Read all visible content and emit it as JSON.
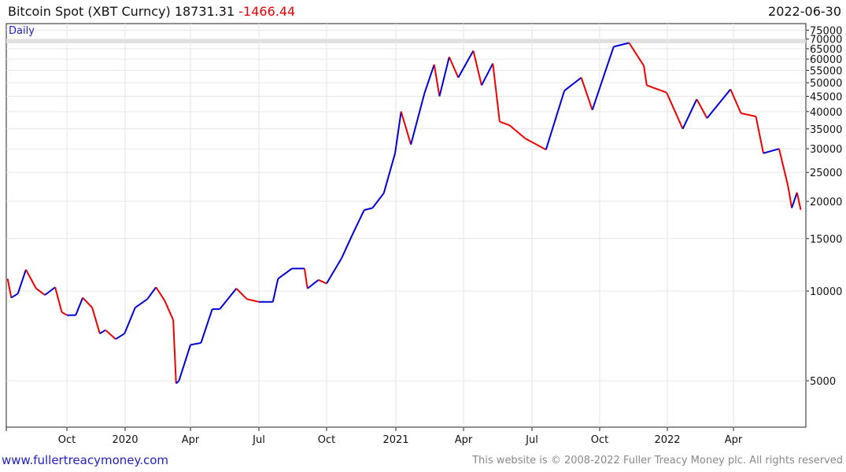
{
  "header": {
    "title": "Bitcoin Spot (XBT Curncy)",
    "last": "18731.31",
    "change": "-1466.44",
    "date": "2022-06-30"
  },
  "period": "Daily",
  "footer": {
    "link": "www.fullertreacymoney.com",
    "copyright": "This website is © 2008-2022 Fuller Treacy Money plc. All rights reserved"
  },
  "colors": {
    "up": "#0000dd",
    "down": "#ee0000"
  },
  "chart_data": {
    "type": "line",
    "scale": "log",
    "title": "Bitcoin Spot (XBT Curncy)",
    "ylim": [
      3800,
      78000
    ],
    "y_ticks": [
      5000,
      10000,
      15000,
      20000,
      25000,
      30000,
      35000,
      40000,
      45000,
      50000,
      55000,
      60000,
      65000,
      70000,
      75000
    ],
    "x_ticks": [
      {
        "label": "Oct",
        "date": "2019-10-01"
      },
      {
        "label": "2020",
        "date": "2020-01-01"
      },
      {
        "label": "Apr",
        "date": "2020-04-01"
      },
      {
        "label": "Jul",
        "date": "2020-07-01"
      },
      {
        "label": "Oct",
        "date": "2020-10-01"
      },
      {
        "label": "2021",
        "date": "2021-01-01"
      },
      {
        "label": "Apr",
        "date": "2021-04-01"
      },
      {
        "label": "Jul",
        "date": "2021-07-01"
      },
      {
        "label": "Oct",
        "date": "2021-10-01"
      },
      {
        "label": "2022",
        "date": "2022-01-01"
      },
      {
        "label": "Apr",
        "date": "2022-04-01"
      }
    ],
    "series": [
      [
        "2019-07-12",
        11000
      ],
      [
        "2019-07-17",
        9500
      ],
      [
        "2019-07-26",
        9800
      ],
      [
        "2019-08-06",
        11800
      ],
      [
        "2019-08-20",
        10200
      ],
      [
        "2019-09-01",
        9700
      ],
      [
        "2019-09-15",
        10300
      ],
      [
        "2019-09-24",
        8500
      ],
      [
        "2019-10-01",
        8300
      ],
      [
        "2019-10-15",
        8300
      ],
      [
        "2019-10-26",
        9500
      ],
      [
        "2019-11-10",
        8800
      ],
      [
        "2019-11-22",
        7200
      ],
      [
        "2019-12-01",
        7400
      ],
      [
        "2019-12-17",
        6900
      ],
      [
        "2019-12-31",
        7200
      ],
      [
        "2020-01-15",
        8800
      ],
      [
        "2020-02-01",
        9400
      ],
      [
        "2020-02-13",
        10300
      ],
      [
        "2020-02-25",
        9300
      ],
      [
        "2020-03-08",
        8000
      ],
      [
        "2020-03-12",
        4900
      ],
      [
        "2020-03-16",
        5000
      ],
      [
        "2020-04-01",
        6600
      ],
      [
        "2020-04-15",
        6700
      ],
      [
        "2020-04-30",
        8700
      ],
      [
        "2020-05-10",
        8700
      ],
      [
        "2020-06-01",
        10200
      ],
      [
        "2020-06-15",
        9400
      ],
      [
        "2020-07-01",
        9200
      ],
      [
        "2020-07-20",
        9200
      ],
      [
        "2020-07-27",
        11000
      ],
      [
        "2020-08-15",
        11900
      ],
      [
        "2020-09-01",
        11900
      ],
      [
        "2020-09-05",
        10200
      ],
      [
        "2020-09-20",
        10900
      ],
      [
        "2020-10-01",
        10600
      ],
      [
        "2020-10-21",
        12900
      ],
      [
        "2020-11-05",
        15600
      ],
      [
        "2020-11-20",
        18700
      ],
      [
        "2020-12-01",
        19000
      ],
      [
        "2020-12-16",
        21300
      ],
      [
        "2020-12-31",
        29000
      ],
      [
        "2021-01-08",
        40000
      ],
      [
        "2021-01-21",
        31000
      ],
      [
        "2021-02-08",
        46000
      ],
      [
        "2021-02-21",
        57500
      ],
      [
        "2021-02-28",
        45000
      ],
      [
        "2021-03-13",
        61000
      ],
      [
        "2021-03-25",
        52000
      ],
      [
        "2021-04-14",
        64000
      ],
      [
        "2021-04-25",
        49000
      ],
      [
        "2021-05-10",
        58000
      ],
      [
        "2021-05-19",
        37000
      ],
      [
        "2021-06-01",
        36000
      ],
      [
        "2021-06-22",
        32500
      ],
      [
        "2021-07-20",
        29800
      ],
      [
        "2021-08-14",
        47000
      ],
      [
        "2021-09-06",
        52000
      ],
      [
        "2021-09-21",
        40500
      ],
      [
        "2021-10-20",
        66000
      ],
      [
        "2021-11-10",
        68000
      ],
      [
        "2021-11-30",
        57000
      ],
      [
        "2021-12-04",
        49000
      ],
      [
        "2021-12-31",
        46300
      ],
      [
        "2022-01-22",
        35000
      ],
      [
        "2022-02-10",
        44000
      ],
      [
        "2022-02-24",
        38000
      ],
      [
        "2022-03-28",
        47500
      ],
      [
        "2022-04-11",
        39500
      ],
      [
        "2022-05-01",
        38500
      ],
      [
        "2022-05-11",
        29000
      ],
      [
        "2022-06-01",
        30000
      ],
      [
        "2022-06-13",
        22500
      ],
      [
        "2022-06-18",
        19000
      ],
      [
        "2022-06-25",
        21400
      ],
      [
        "2022-06-30",
        18731.31
      ]
    ]
  }
}
